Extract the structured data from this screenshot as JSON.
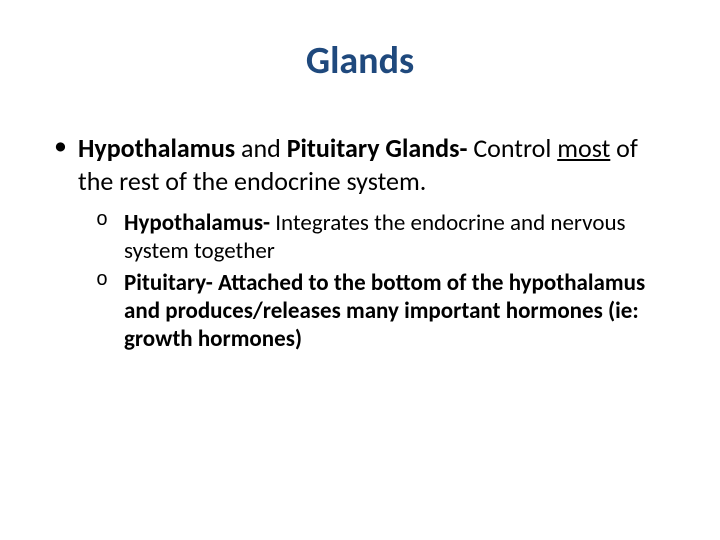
{
  "title": {
    "text": "Glands",
    "color": "#1f497d",
    "fontsize": 38
  },
  "bullet1": {
    "fontsize": 26,
    "segments": {
      "s1_bold": "Hypothalamus",
      "s2": " and ",
      "s3_bold": "Pituitary Glands-",
      "s4": " Control ",
      "s5_under": "most",
      "s6": " of the rest of the endocrine system."
    }
  },
  "sub": {
    "fontsize": 23,
    "items": [
      {
        "s1_bold": "Hypothalamus-",
        "s2": " Integrates the endocrine and nervous system together"
      },
      {
        "s1_bold": "Pituitary- Attached to the bottom of the hypothalamus and produces/releases many important hormones (ie: growth hormones)"
      }
    ]
  },
  "colors": {
    "text": "#000000",
    "background": "#ffffff"
  }
}
